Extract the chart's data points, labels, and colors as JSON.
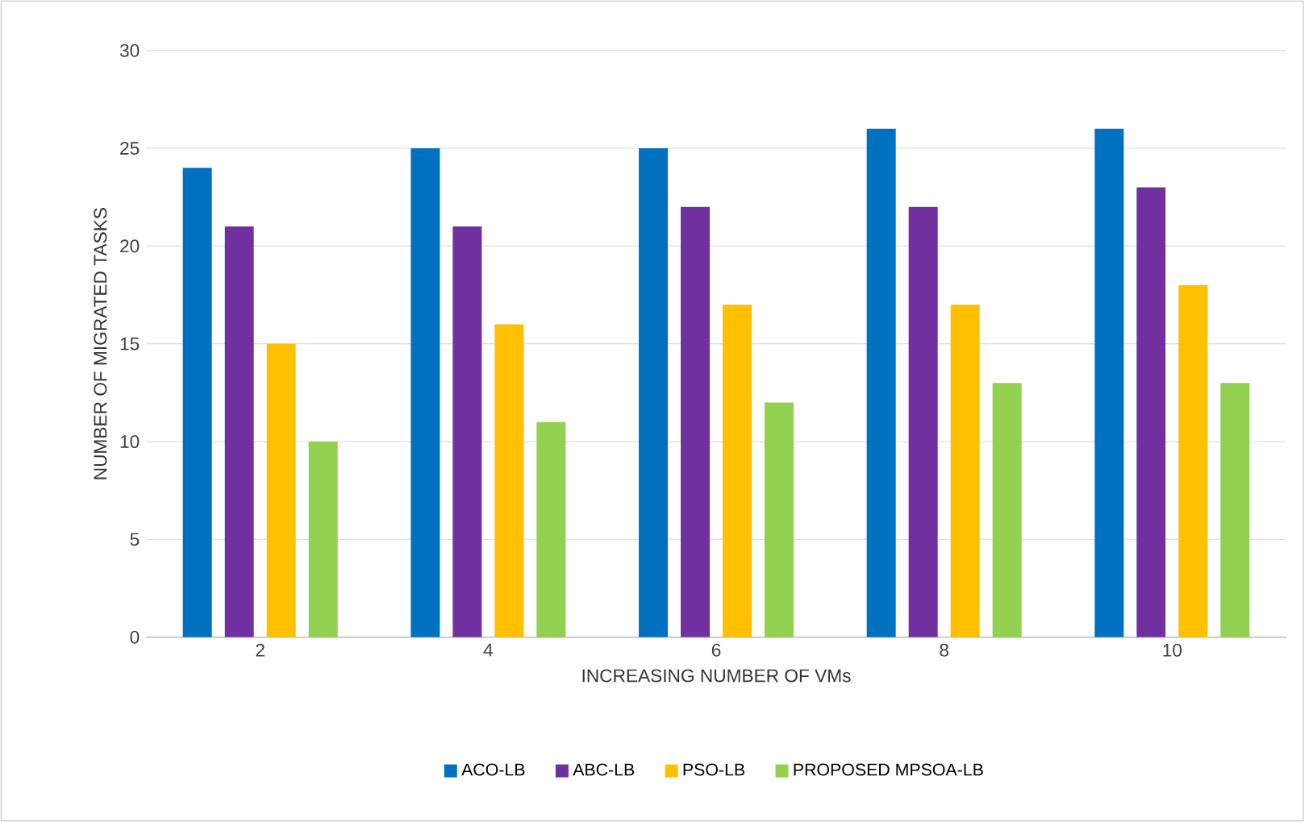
{
  "chart_data": {
    "type": "bar",
    "xlabel": "INCREASING NUMBER OF VMs",
    "ylabel": "NUMBER OF MIGRATED TASKS",
    "categories": [
      "2",
      "4",
      "6",
      "8",
      "10"
    ],
    "series": [
      {
        "name": "ACO-LB",
        "color": "#0070c0",
        "values": [
          24,
          25,
          25,
          26,
          26
        ]
      },
      {
        "name": "ABC-LB",
        "color": "#7030a0",
        "values": [
          21,
          21,
          22,
          22,
          23
        ]
      },
      {
        "name": "PSO-LB",
        "color": "#ffc000",
        "values": [
          15,
          16,
          17,
          17,
          18
        ]
      },
      {
        "name": "PROPOSED MPSOA-LB",
        "color": "#92d050",
        "values": [
          10,
          11,
          12,
          13,
          13
        ]
      }
    ],
    "ylim": [
      0,
      30
    ],
    "yticks": [
      0,
      5,
      10,
      15,
      20,
      25,
      30
    ],
    "grid": "y",
    "legend": "bottom"
  }
}
